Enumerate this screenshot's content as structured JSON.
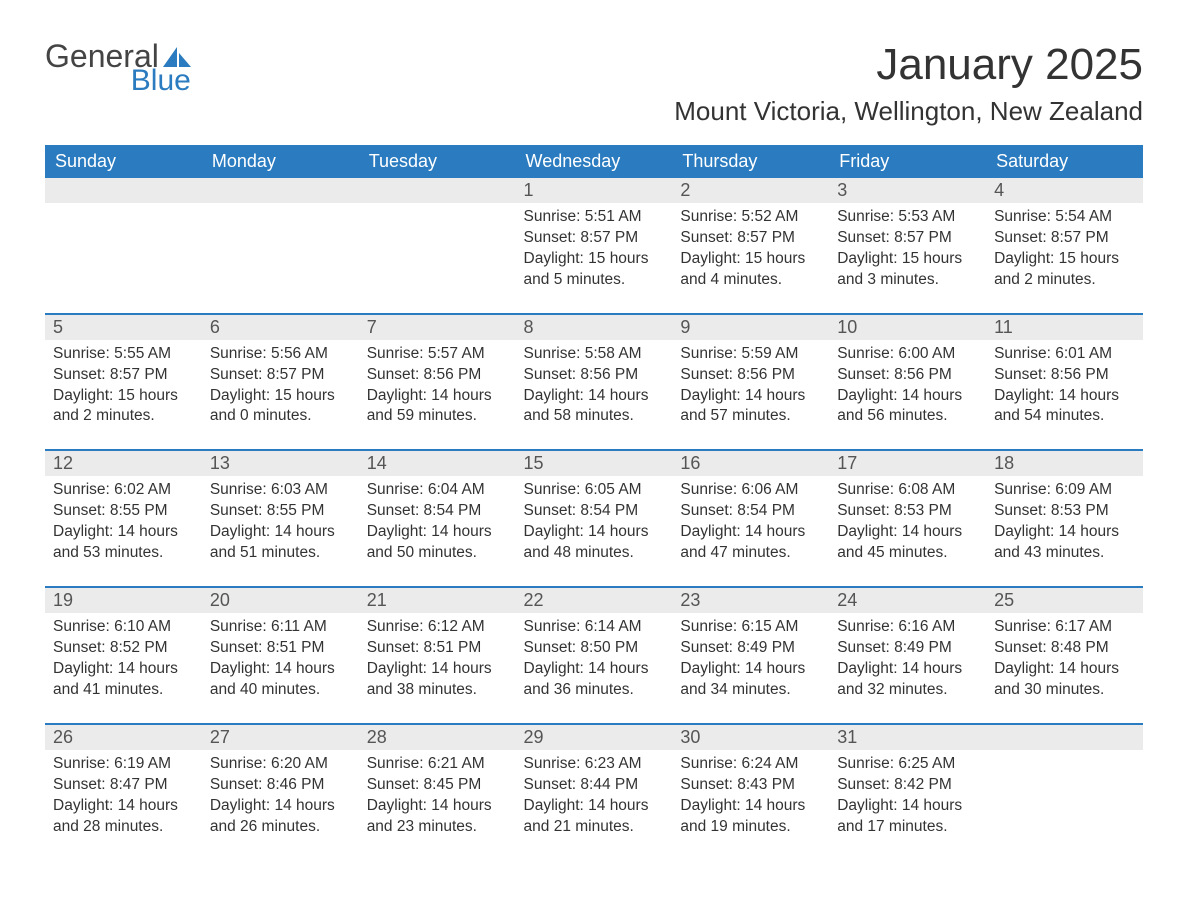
{
  "logo": {
    "word1": "General",
    "word2": "Blue",
    "sail_color": "#2a7bbf"
  },
  "title": "January 2025",
  "location": "Mount Victoria, Wellington, New Zealand",
  "colors": {
    "header_bg": "#2a7bbf",
    "header_text": "#ffffff",
    "daynum_bg": "#ebebeb",
    "text": "#333333"
  },
  "day_headers": [
    "Sunday",
    "Monday",
    "Tuesday",
    "Wednesday",
    "Thursday",
    "Friday",
    "Saturday"
  ],
  "weeks": [
    [
      null,
      null,
      null,
      {
        "n": "1",
        "sr": "Sunrise: 5:51 AM",
        "ss": "Sunset: 8:57 PM",
        "d1": "Daylight: 15 hours",
        "d2": "and 5 minutes."
      },
      {
        "n": "2",
        "sr": "Sunrise: 5:52 AM",
        "ss": "Sunset: 8:57 PM",
        "d1": "Daylight: 15 hours",
        "d2": "and 4 minutes."
      },
      {
        "n": "3",
        "sr": "Sunrise: 5:53 AM",
        "ss": "Sunset: 8:57 PM",
        "d1": "Daylight: 15 hours",
        "d2": "and 3 minutes."
      },
      {
        "n": "4",
        "sr": "Sunrise: 5:54 AM",
        "ss": "Sunset: 8:57 PM",
        "d1": "Daylight: 15 hours",
        "d2": "and 2 minutes."
      }
    ],
    [
      {
        "n": "5",
        "sr": "Sunrise: 5:55 AM",
        "ss": "Sunset: 8:57 PM",
        "d1": "Daylight: 15 hours",
        "d2": "and 2 minutes."
      },
      {
        "n": "6",
        "sr": "Sunrise: 5:56 AM",
        "ss": "Sunset: 8:57 PM",
        "d1": "Daylight: 15 hours",
        "d2": "and 0 minutes."
      },
      {
        "n": "7",
        "sr": "Sunrise: 5:57 AM",
        "ss": "Sunset: 8:56 PM",
        "d1": "Daylight: 14 hours",
        "d2": "and 59 minutes."
      },
      {
        "n": "8",
        "sr": "Sunrise: 5:58 AM",
        "ss": "Sunset: 8:56 PM",
        "d1": "Daylight: 14 hours",
        "d2": "and 58 minutes."
      },
      {
        "n": "9",
        "sr": "Sunrise: 5:59 AM",
        "ss": "Sunset: 8:56 PM",
        "d1": "Daylight: 14 hours",
        "d2": "and 57 minutes."
      },
      {
        "n": "10",
        "sr": "Sunrise: 6:00 AM",
        "ss": "Sunset: 8:56 PM",
        "d1": "Daylight: 14 hours",
        "d2": "and 56 minutes."
      },
      {
        "n": "11",
        "sr": "Sunrise: 6:01 AM",
        "ss": "Sunset: 8:56 PM",
        "d1": "Daylight: 14 hours",
        "d2": "and 54 minutes."
      }
    ],
    [
      {
        "n": "12",
        "sr": "Sunrise: 6:02 AM",
        "ss": "Sunset: 8:55 PM",
        "d1": "Daylight: 14 hours",
        "d2": "and 53 minutes."
      },
      {
        "n": "13",
        "sr": "Sunrise: 6:03 AM",
        "ss": "Sunset: 8:55 PM",
        "d1": "Daylight: 14 hours",
        "d2": "and 51 minutes."
      },
      {
        "n": "14",
        "sr": "Sunrise: 6:04 AM",
        "ss": "Sunset: 8:54 PM",
        "d1": "Daylight: 14 hours",
        "d2": "and 50 minutes."
      },
      {
        "n": "15",
        "sr": "Sunrise: 6:05 AM",
        "ss": "Sunset: 8:54 PM",
        "d1": "Daylight: 14 hours",
        "d2": "and 48 minutes."
      },
      {
        "n": "16",
        "sr": "Sunrise: 6:06 AM",
        "ss": "Sunset: 8:54 PM",
        "d1": "Daylight: 14 hours",
        "d2": "and 47 minutes."
      },
      {
        "n": "17",
        "sr": "Sunrise: 6:08 AM",
        "ss": "Sunset: 8:53 PM",
        "d1": "Daylight: 14 hours",
        "d2": "and 45 minutes."
      },
      {
        "n": "18",
        "sr": "Sunrise: 6:09 AM",
        "ss": "Sunset: 8:53 PM",
        "d1": "Daylight: 14 hours",
        "d2": "and 43 minutes."
      }
    ],
    [
      {
        "n": "19",
        "sr": "Sunrise: 6:10 AM",
        "ss": "Sunset: 8:52 PM",
        "d1": "Daylight: 14 hours",
        "d2": "and 41 minutes."
      },
      {
        "n": "20",
        "sr": "Sunrise: 6:11 AM",
        "ss": "Sunset: 8:51 PM",
        "d1": "Daylight: 14 hours",
        "d2": "and 40 minutes."
      },
      {
        "n": "21",
        "sr": "Sunrise: 6:12 AM",
        "ss": "Sunset: 8:51 PM",
        "d1": "Daylight: 14 hours",
        "d2": "and 38 minutes."
      },
      {
        "n": "22",
        "sr": "Sunrise: 6:14 AM",
        "ss": "Sunset: 8:50 PM",
        "d1": "Daylight: 14 hours",
        "d2": "and 36 minutes."
      },
      {
        "n": "23",
        "sr": "Sunrise: 6:15 AM",
        "ss": "Sunset: 8:49 PM",
        "d1": "Daylight: 14 hours",
        "d2": "and 34 minutes."
      },
      {
        "n": "24",
        "sr": "Sunrise: 6:16 AM",
        "ss": "Sunset: 8:49 PM",
        "d1": "Daylight: 14 hours",
        "d2": "and 32 minutes."
      },
      {
        "n": "25",
        "sr": "Sunrise: 6:17 AM",
        "ss": "Sunset: 8:48 PM",
        "d1": "Daylight: 14 hours",
        "d2": "and 30 minutes."
      }
    ],
    [
      {
        "n": "26",
        "sr": "Sunrise: 6:19 AM",
        "ss": "Sunset: 8:47 PM",
        "d1": "Daylight: 14 hours",
        "d2": "and 28 minutes."
      },
      {
        "n": "27",
        "sr": "Sunrise: 6:20 AM",
        "ss": "Sunset: 8:46 PM",
        "d1": "Daylight: 14 hours",
        "d2": "and 26 minutes."
      },
      {
        "n": "28",
        "sr": "Sunrise: 6:21 AM",
        "ss": "Sunset: 8:45 PM",
        "d1": "Daylight: 14 hours",
        "d2": "and 23 minutes."
      },
      {
        "n": "29",
        "sr": "Sunrise: 6:23 AM",
        "ss": "Sunset: 8:44 PM",
        "d1": "Daylight: 14 hours",
        "d2": "and 21 minutes."
      },
      {
        "n": "30",
        "sr": "Sunrise: 6:24 AM",
        "ss": "Sunset: 8:43 PM",
        "d1": "Daylight: 14 hours",
        "d2": "and 19 minutes."
      },
      {
        "n": "31",
        "sr": "Sunrise: 6:25 AM",
        "ss": "Sunset: 8:42 PM",
        "d1": "Daylight: 14 hours",
        "d2": "and 17 minutes."
      },
      null
    ]
  ]
}
